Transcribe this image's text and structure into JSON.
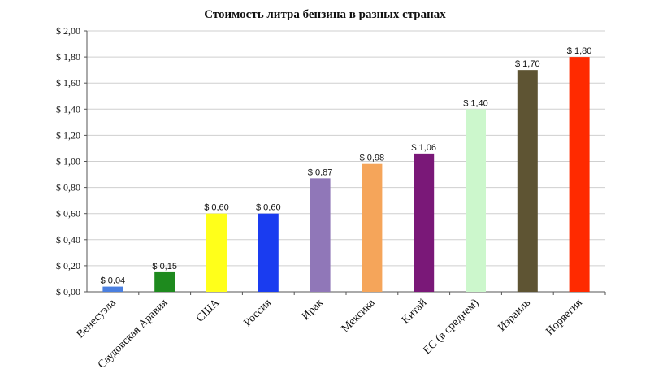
{
  "chart_data": {
    "type": "bar",
    "title": "Стоимость литра бензина в разных странах",
    "xlabel": "",
    "ylabel": "",
    "ylim": [
      0,
      2.0
    ],
    "ytick_step": 0.2,
    "ytick_labels": [
      "$ 0,00",
      "$ 0,20",
      "$ 0,40",
      "$ 0,60",
      "$ 0,80",
      "$ 1,00",
      "$ 1,20",
      "$ 1,40",
      "$ 1,60",
      "$ 1,80",
      "$ 2,00"
    ],
    "grid": true,
    "legend": "none",
    "categories": [
      "Венесуэла",
      "Саудовская Аравия",
      "США",
      "Россия",
      "Ирак",
      "Мексика",
      "Китай",
      "ЕС (в среднем)",
      "Израиль",
      "Норвегия"
    ],
    "values": [
      0.04,
      0.15,
      0.6,
      0.6,
      0.87,
      0.98,
      1.06,
      1.4,
      1.7,
      1.8
    ],
    "data_labels": [
      "$ 0,04",
      "$ 0,15",
      "$ 0,60",
      "$ 0,60",
      "$ 0,87",
      "$ 0,98",
      "$ 1,06",
      "$ 1,40",
      "$ 1,70",
      "$ 1,80"
    ],
    "colors": [
      "#4a7fe0",
      "#1e8a1e",
      "#ffff1a",
      "#1a3cf0",
      "#9077b8",
      "#f5a55a",
      "#7a1878",
      "#ccf7cc",
      "#5e5433",
      "#ff2a00"
    ]
  }
}
